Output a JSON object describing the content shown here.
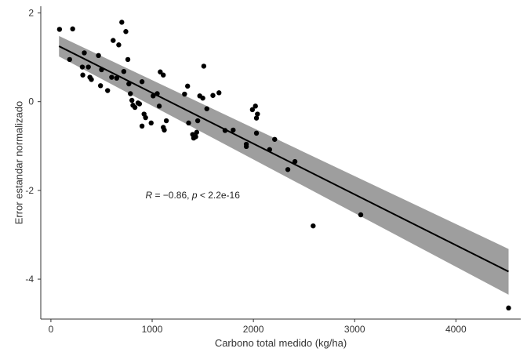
{
  "chart_data": {
    "type": "scatter",
    "title": "",
    "xlabel": "Carbono total medido (kg/ha)",
    "ylabel": "Error estandar normalizado",
    "xlim": [
      -100,
      4640
    ],
    "ylim": [
      -4.9,
      2.15
    ],
    "xticks": [
      0,
      1000,
      2000,
      3000,
      4000
    ],
    "xtick_labels": [
      "0",
      "1000",
      "2000",
      "3000",
      "4000"
    ],
    "yticks": [
      -4,
      -2,
      0,
      2
    ],
    "ytick_labels": [
      "-4",
      "-2",
      "0",
      "2"
    ],
    "grid": false,
    "legend": "none",
    "point_color": "#000000",
    "line_color": "#000000",
    "band_color": "#9e9e9e",
    "annotation": {
      "parts": [
        {
          "text": "R",
          "style": "italic"
        },
        {
          "text": " = −0.86, ",
          "style": "normal"
        },
        {
          "text": "p",
          "style": "italic"
        },
        {
          "text": " < 2.2e-16",
          "style": "normal"
        }
      ],
      "x": 1400,
      "y": -2.18
    },
    "regression": {
      "x": [
        80,
        4520
      ],
      "y": [
        1.25,
        -3.83
      ],
      "ci_lower": [
        1.02,
        -4.35
      ],
      "ci_upper": [
        1.48,
        -3.32
      ]
    },
    "points": [
      {
        "x": 85,
        "y": 1.63
      },
      {
        "x": 215,
        "y": 1.64
      },
      {
        "x": 185,
        "y": 0.95
      },
      {
        "x": 330,
        "y": 1.1
      },
      {
        "x": 310,
        "y": 0.78
      },
      {
        "x": 315,
        "y": 0.6
      },
      {
        "x": 370,
        "y": 0.78
      },
      {
        "x": 385,
        "y": 0.55
      },
      {
        "x": 400,
        "y": 0.5
      },
      {
        "x": 470,
        "y": 1.04
      },
      {
        "x": 500,
        "y": 0.72
      },
      {
        "x": 490,
        "y": 0.36
      },
      {
        "x": 560,
        "y": 0.25
      },
      {
        "x": 600,
        "y": 0.55
      },
      {
        "x": 615,
        "y": 1.38
      },
      {
        "x": 650,
        "y": 0.53
      },
      {
        "x": 670,
        "y": 1.28
      },
      {
        "x": 700,
        "y": 1.79
      },
      {
        "x": 740,
        "y": 1.58
      },
      {
        "x": 720,
        "y": 0.68
      },
      {
        "x": 760,
        "y": 0.95
      },
      {
        "x": 770,
        "y": 0.4
      },
      {
        "x": 785,
        "y": 0.18
      },
      {
        "x": 800,
        "y": 0.03
      },
      {
        "x": 810,
        "y": -0.08
      },
      {
        "x": 830,
        "y": -0.13
      },
      {
        "x": 860,
        "y": -0.03
      },
      {
        "x": 875,
        "y": -0.05
      },
      {
        "x": 900,
        "y": 0.45
      },
      {
        "x": 920,
        "y": -0.28
      },
      {
        "x": 935,
        "y": -0.36
      },
      {
        "x": 900,
        "y": -0.55
      },
      {
        "x": 990,
        "y": -0.48
      },
      {
        "x": 1010,
        "y": 0.13
      },
      {
        "x": 1050,
        "y": 0.18
      },
      {
        "x": 1070,
        "y": -0.1
      },
      {
        "x": 1080,
        "y": 0.67
      },
      {
        "x": 1110,
        "y": 0.6
      },
      {
        "x": 1110,
        "y": -0.58
      },
      {
        "x": 1120,
        "y": -0.64
      },
      {
        "x": 1140,
        "y": -0.43
      },
      {
        "x": 1320,
        "y": 0.17
      },
      {
        "x": 1350,
        "y": 0.35
      },
      {
        "x": 1360,
        "y": -0.48
      },
      {
        "x": 1400,
        "y": -0.74
      },
      {
        "x": 1410,
        "y": -0.82
      },
      {
        "x": 1430,
        "y": -0.79
      },
      {
        "x": 1440,
        "y": -0.69
      },
      {
        "x": 1450,
        "y": -0.43
      },
      {
        "x": 1470,
        "y": 0.13
      },
      {
        "x": 1500,
        "y": 0.08
      },
      {
        "x": 1510,
        "y": 0.8
      },
      {
        "x": 1540,
        "y": -0.16
      },
      {
        "x": 1600,
        "y": 0.14
      },
      {
        "x": 1660,
        "y": 0.2
      },
      {
        "x": 1720,
        "y": -0.65
      },
      {
        "x": 1800,
        "y": -0.64
      },
      {
        "x": 1930,
        "y": -0.96
      },
      {
        "x": 1930,
        "y": -1.01
      },
      {
        "x": 1990,
        "y": -0.18
      },
      {
        "x": 2020,
        "y": -0.1
      },
      {
        "x": 2030,
        "y": -0.37
      },
      {
        "x": 2040,
        "y": -0.28
      },
      {
        "x": 2030,
        "y": -0.71
      },
      {
        "x": 2160,
        "y": -1.08
      },
      {
        "x": 2210,
        "y": -0.85
      },
      {
        "x": 2340,
        "y": -1.53
      },
      {
        "x": 2410,
        "y": -1.35
      },
      {
        "x": 2590,
        "y": -2.8
      },
      {
        "x": 3060,
        "y": -2.55
      },
      {
        "x": 4520,
        "y": -4.65
      }
    ]
  }
}
